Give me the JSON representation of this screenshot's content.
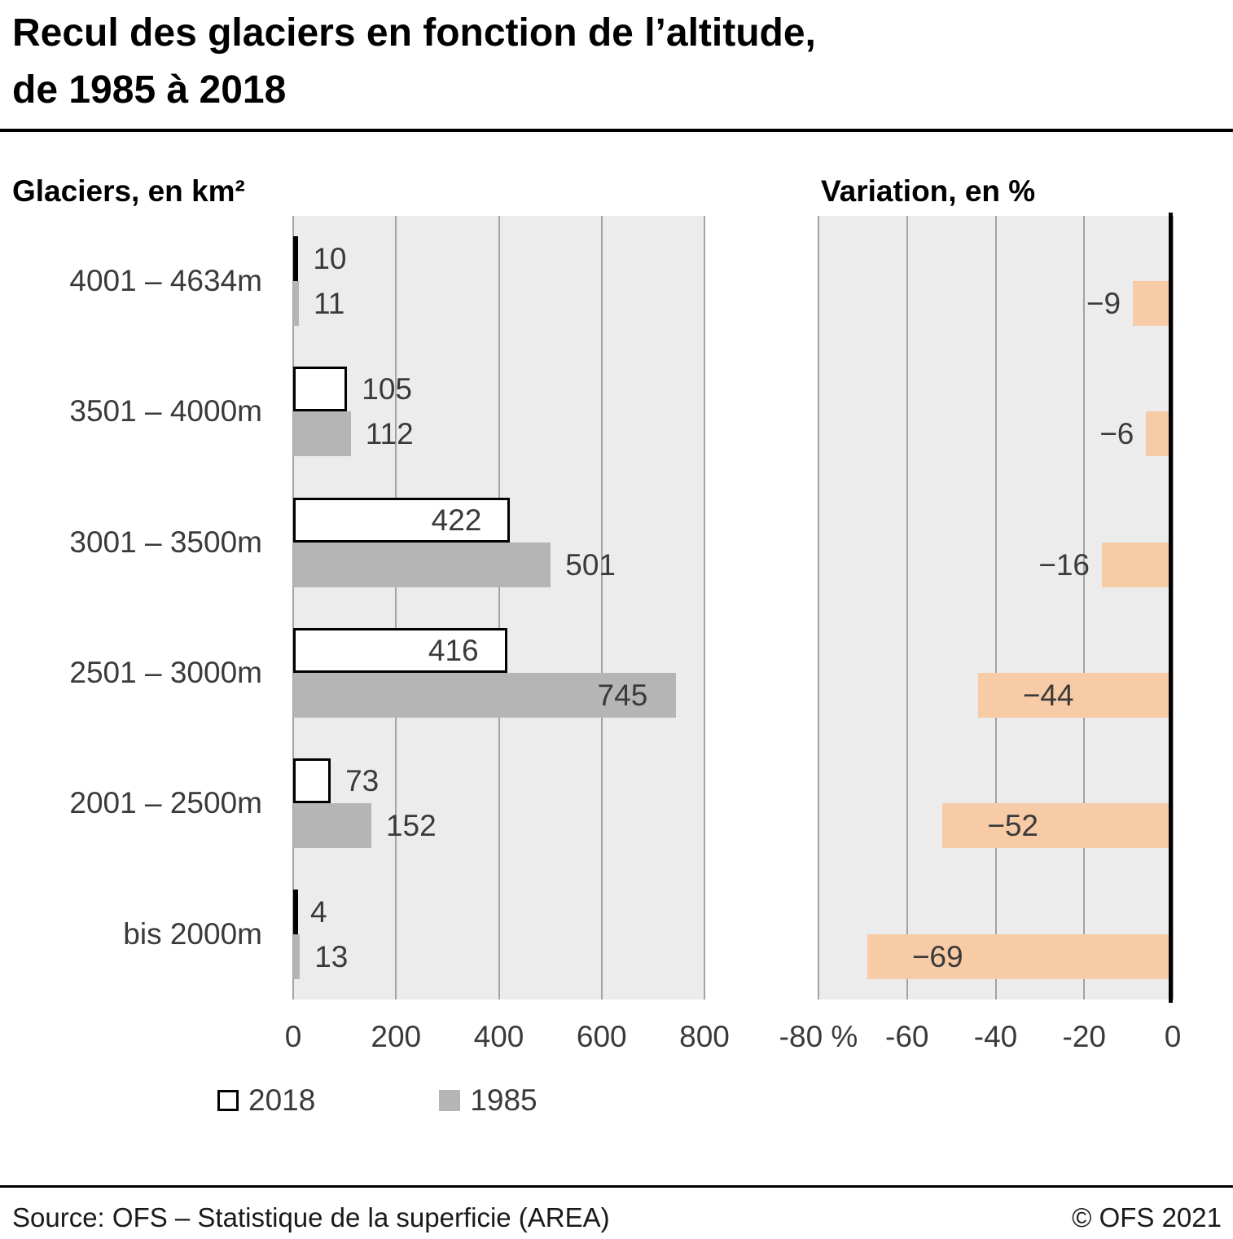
{
  "title": {
    "line1": "Recul des glaciers en fonction de l’altitude,",
    "line2": "de 1985 à 2018"
  },
  "chart_data": [
    {
      "type": "bar",
      "orientation": "horizontal",
      "title": "Glaciers, en km²",
      "categories": [
        "4001 – 4634m",
        "3501 – 4000m",
        "3001 – 3500m",
        "2501 – 3000m",
        "2001 – 2500m",
        "bis 2000m"
      ],
      "series": [
        {
          "name": "2018",
          "values": [
            10,
            105,
            422,
            416,
            73,
            4
          ]
        },
        {
          "name": "1985",
          "values": [
            11,
            112,
            501,
            745,
            152,
            13
          ]
        }
      ],
      "xlim": [
        0,
        800
      ],
      "xticks": [
        0,
        200,
        400,
        600,
        800
      ],
      "xtick_labels": [
        "0",
        "200",
        "400",
        "600",
        "800"
      ],
      "grid": true,
      "legend_position": "bottom"
    },
    {
      "type": "bar",
      "orientation": "horizontal",
      "title": "Variation, en %",
      "categories": [
        "4001 – 4634m",
        "3501 – 4000m",
        "3001 – 3500m",
        "2501 – 3000m",
        "2001 – 2500m",
        "bis 2000m"
      ],
      "values": [
        -9,
        -6,
        -16,
        -44,
        -52,
        -69
      ],
      "labels": [
        "−9",
        "−6",
        "−16",
        "−44",
        "−52",
        "−69"
      ],
      "xlim": [
        -80,
        0
      ],
      "xticks": [
        -80,
        -60,
        -40,
        -20,
        0
      ],
      "xtick_labels": [
        "-80 %",
        "-60",
        "-40",
        "-20",
        "0"
      ],
      "grid": true
    }
  ],
  "legend": [
    {
      "label": "2018",
      "swatch": "outlined-white"
    },
    {
      "label": "1985",
      "swatch": "gray"
    }
  ],
  "colors": {
    "plot_background": "#ececec",
    "gridline": "#a3a3a3",
    "bar_2018_fill": "#ffffff",
    "bar_2018_border": "#000000",
    "bar_1985": "#b5b5b5",
    "bar_variation": "#f7cba6",
    "zero_axis": "#000000"
  },
  "footer": {
    "source": "Source: OFS – Statistique de la superficie (AREA)",
    "copyright": "© OFS 2021"
  }
}
